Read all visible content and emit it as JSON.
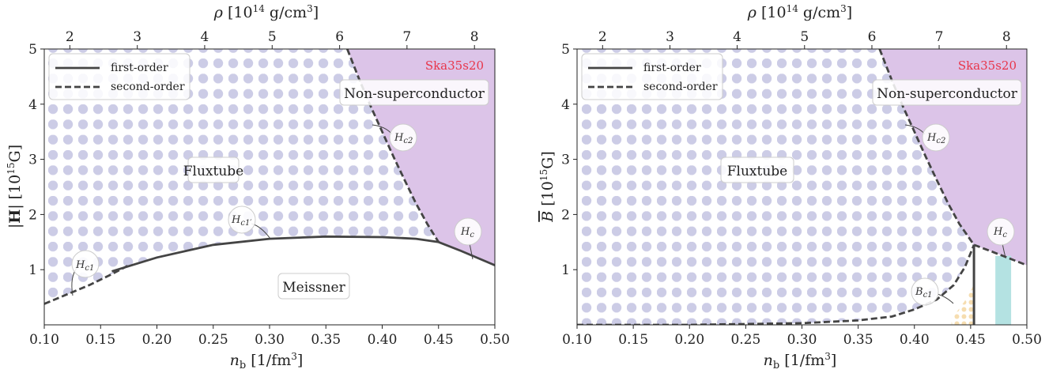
{
  "chart_data": [
    {
      "type": "line",
      "model": "Ska35s20",
      "xlabel": "n_b [1/fm^3]",
      "ylabel": "|H| [10^15 G]",
      "top_xlabel": "ρ [10^14 g/cm^3]",
      "xlim": [
        0.1,
        0.5
      ],
      "ylim": [
        0,
        5
      ],
      "xticks": [
        "0.10",
        "0.15",
        "0.20",
        "0.25",
        "0.30",
        "0.35",
        "0.40",
        "0.45",
        "0.50"
      ],
      "yticks": [
        "1",
        "2",
        "3",
        "4",
        "5"
      ],
      "top_ticks": [
        {
          "nb": 0.1227,
          "label": "2"
        },
        {
          "nb": 0.1826,
          "label": "3"
        },
        {
          "nb": 0.2424,
          "label": "4"
        },
        {
          "nb": 0.3023,
          "label": "5"
        },
        {
          "nb": 0.3622,
          "label": "6"
        },
        {
          "nb": 0.422,
          "label": "7"
        },
        {
          "nb": 0.4819,
          "label": "8"
        }
      ],
      "legend": {
        "position": "upper left",
        "entries": [
          "first-order",
          "second-order"
        ]
      },
      "regions": [
        "Fluxtube",
        "Meissner",
        "Non-superconductor"
      ],
      "annotations": [
        "H_c1",
        "H_c1'",
        "H_c2",
        "H_c"
      ],
      "series": [
        {
          "name": "H_c1",
          "style": "second-order",
          "x": [
            0.1,
            0.12,
            0.14,
            0.16,
            0.175
          ],
          "y": [
            0.38,
            0.55,
            0.72,
            0.92,
            1.08
          ]
        },
        {
          "name": "H_c1'",
          "style": "first-order",
          "x": [
            0.16,
            0.2,
            0.25,
            0.3,
            0.35,
            0.4,
            0.43,
            0.45
          ],
          "y": [
            0.97,
            1.22,
            1.45,
            1.56,
            1.6,
            1.59,
            1.56,
            1.5
          ]
        },
        {
          "name": "H_c2",
          "style": "second-order",
          "x": [
            0.369,
            0.38,
            0.39,
            0.4,
            0.41,
            0.42,
            0.43,
            0.44,
            0.45
          ],
          "y": [
            5.0,
            4.43,
            3.95,
            3.5,
            3.05,
            2.62,
            2.2,
            1.83,
            1.5
          ]
        },
        {
          "name": "H_c",
          "style": "first-order",
          "x": [
            0.45,
            0.47,
            0.5
          ],
          "y": [
            1.5,
            1.34,
            1.08
          ]
        }
      ]
    },
    {
      "type": "line",
      "model": "Ska35s20",
      "xlabel": "n_b [1/fm^3]",
      "ylabel": "B̄ [10^15 G]",
      "top_xlabel": "ρ [10^14 g/cm^3]",
      "xlim": [
        0.1,
        0.5
      ],
      "ylim": [
        0,
        5
      ],
      "xticks": [
        "0.10",
        "0.15",
        "0.20",
        "0.25",
        "0.30",
        "0.35",
        "0.40",
        "0.45",
        "0.50"
      ],
      "yticks": [
        "1",
        "2",
        "3",
        "4",
        "5"
      ],
      "top_ticks": [
        {
          "nb": 0.1227,
          "label": "2"
        },
        {
          "nb": 0.1826,
          "label": "3"
        },
        {
          "nb": 0.2424,
          "label": "4"
        },
        {
          "nb": 0.3023,
          "label": "5"
        },
        {
          "nb": 0.3622,
          "label": "6"
        },
        {
          "nb": 0.422,
          "label": "7"
        },
        {
          "nb": 0.4819,
          "label": "8"
        }
      ],
      "legend": {
        "position": "upper left",
        "entries": [
          "first-order",
          "second-order"
        ]
      },
      "regions": [
        "Fluxtube",
        "Non-superconductor"
      ],
      "annotations": [
        "B_c1",
        "H_c2",
        "H_c"
      ],
      "series": [
        {
          "name": "B_c1",
          "style": "second-order",
          "x": [
            0.1,
            0.2,
            0.3,
            0.35,
            0.38,
            0.4,
            0.42,
            0.435,
            0.445,
            0.453
          ],
          "y": [
            0.0,
            0.0,
            0.03,
            0.08,
            0.15,
            0.28,
            0.46,
            0.72,
            1.05,
            1.45
          ]
        },
        {
          "name": "H_c2",
          "style": "second-order",
          "x": [
            0.369,
            0.38,
            0.39,
            0.4,
            0.41,
            0.42,
            0.43,
            0.44,
            0.453
          ],
          "y": [
            5.0,
            4.43,
            3.95,
            3.5,
            3.05,
            2.62,
            2.2,
            1.83,
            1.45
          ]
        },
        {
          "name": "H_c",
          "style": "second-order",
          "x": [
            0.453,
            0.47,
            0.5
          ],
          "y": [
            1.45,
            1.32,
            1.08
          ]
        },
        {
          "name": "first-order boundary",
          "style": "first-order",
          "x": [
            0.453,
            0.453
          ],
          "y": [
            0.0,
            1.45
          ]
        }
      ],
      "bands": [
        {
          "kind": "dotted",
          "color": "#f6ddb0",
          "x": [
            0.433,
            0.453
          ],
          "y": [
            0,
            0.75
          ]
        },
        {
          "kind": "solid",
          "color": "#b4e2e2",
          "x": [
            0.472,
            0.486
          ],
          "y": [
            0,
            1.25
          ]
        }
      ]
    }
  ],
  "labels": {
    "left": {
      "fluxtube": "Fluxtube",
      "meissner": "Meissner",
      "nonsc": "Non-superconductor",
      "model": "Ska35s20",
      "leg1": "first-order",
      "leg2": "second-order",
      "hc1": "c1",
      "hc1p": "c1′",
      "hc2": "c2",
      "hc": "c"
    },
    "right": {
      "fluxtube": "Fluxtube",
      "nonsc": "Non-superconductor",
      "model": "Ska35s20",
      "leg1": "first-order",
      "leg2": "second-order",
      "bc1": "c1",
      "hc2": "c2",
      "hc": "c"
    }
  },
  "colors": {
    "dots": "#cccce6",
    "nonsc_fill": "#dcc4e8",
    "line": "#444444",
    "model_label": "#e8354a",
    "dotted_band": "#f6ddb0",
    "solid_band": "#b4e2e2"
  }
}
